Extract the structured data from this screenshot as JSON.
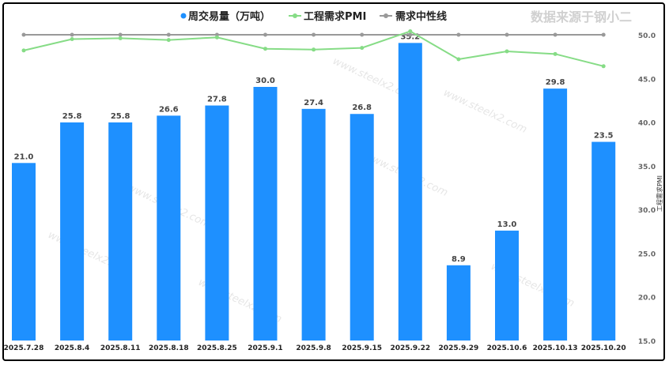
{
  "chart_data": {
    "type": "bar+line",
    "categories": [
      "2025.7.28",
      "2025.8.4",
      "2025.8.11",
      "2025.8.18",
      "2025.8.25",
      "2025.9.1",
      "2025.9.8",
      "2025.9.15",
      "2025.9.22",
      "2025.9.29",
      "2025.10.6",
      "2025.10.13",
      "2025.10.20"
    ],
    "series": [
      {
        "name": "周交易量（万吨）",
        "type": "bar",
        "axis": "left",
        "color": "#1e90ff",
        "values": [
          21.0,
          25.8,
          25.8,
          26.6,
          27.8,
          30.0,
          27.4,
          26.8,
          35.2,
          8.9,
          13.0,
          29.8,
          23.5
        ],
        "labels": [
          "21.0",
          "25.8",
          "25.8",
          "26.6",
          "27.8",
          "30.0",
          "27.4",
          "26.8",
          "35.2",
          "8.9",
          "13.0",
          "29.8",
          "23.5"
        ]
      },
      {
        "name": "工程需求PMI",
        "type": "line",
        "axis": "right",
        "color": "#86dc86",
        "values": [
          48.2,
          49.5,
          49.6,
          49.4,
          49.7,
          48.4,
          48.3,
          48.5,
          50.4,
          47.2,
          48.1,
          47.8,
          46.4
        ]
      },
      {
        "name": "需求中性线",
        "type": "line",
        "axis": "right",
        "color": "#999999",
        "values": [
          50,
          50,
          50,
          50,
          50,
          50,
          50,
          50,
          50,
          50,
          50,
          50,
          50
        ]
      }
    ],
    "left_ylim": [
      0,
      40
    ],
    "right_ylim": [
      15,
      50
    ],
    "right_ticks": [
      "15.0",
      "20.0",
      "25.0",
      "30.0",
      "35.0",
      "40.0",
      "45.0",
      "50.0"
    ],
    "right_ylabel": "工程需求PMI",
    "legend_position": "top-center",
    "source_note": "数据来源于钢小二",
    "watermark": "www.steelx2.com"
  }
}
